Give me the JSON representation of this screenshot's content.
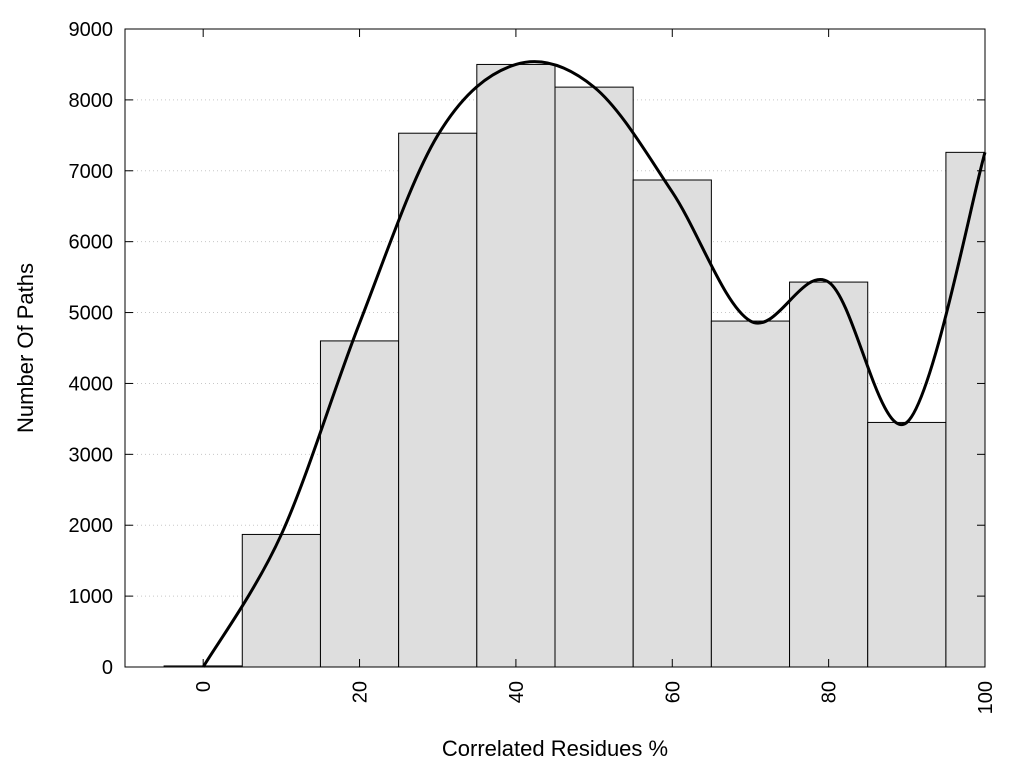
{
  "chart_data": {
    "type": "bar",
    "title": "",
    "xlabel": "Correlated Residues %",
    "ylabel": "Number Of Paths",
    "xlim": [
      -10,
      100
    ],
    "ylim": [
      0,
      9000
    ],
    "x_ticks": [
      0,
      20,
      40,
      60,
      80,
      100
    ],
    "y_ticks": [
      0,
      1000,
      2000,
      3000,
      4000,
      5000,
      6000,
      7000,
      8000,
      9000
    ],
    "bin_width": 10,
    "grid": "horizontal-dotted",
    "bar_color": "#dedede",
    "bar_edge_color": "#000000",
    "curve_color": "#000000",
    "series": [
      {
        "type": "bar",
        "x": [
          0,
          10,
          20,
          30,
          40,
          50,
          60,
          70,
          80,
          90,
          100
        ],
        "values": [
          15,
          1870,
          4600,
          7530,
          8500,
          8180,
          6870,
          4880,
          5430,
          3450,
          7260
        ]
      },
      {
        "type": "line",
        "x": [
          0,
          10,
          20,
          30,
          40,
          50,
          60,
          70,
          80,
          90,
          100
        ],
        "values": [
          0,
          1870,
          4850,
          7500,
          8500,
          8180,
          6700,
          4880,
          5430,
          3450,
          7260
        ]
      }
    ]
  }
}
